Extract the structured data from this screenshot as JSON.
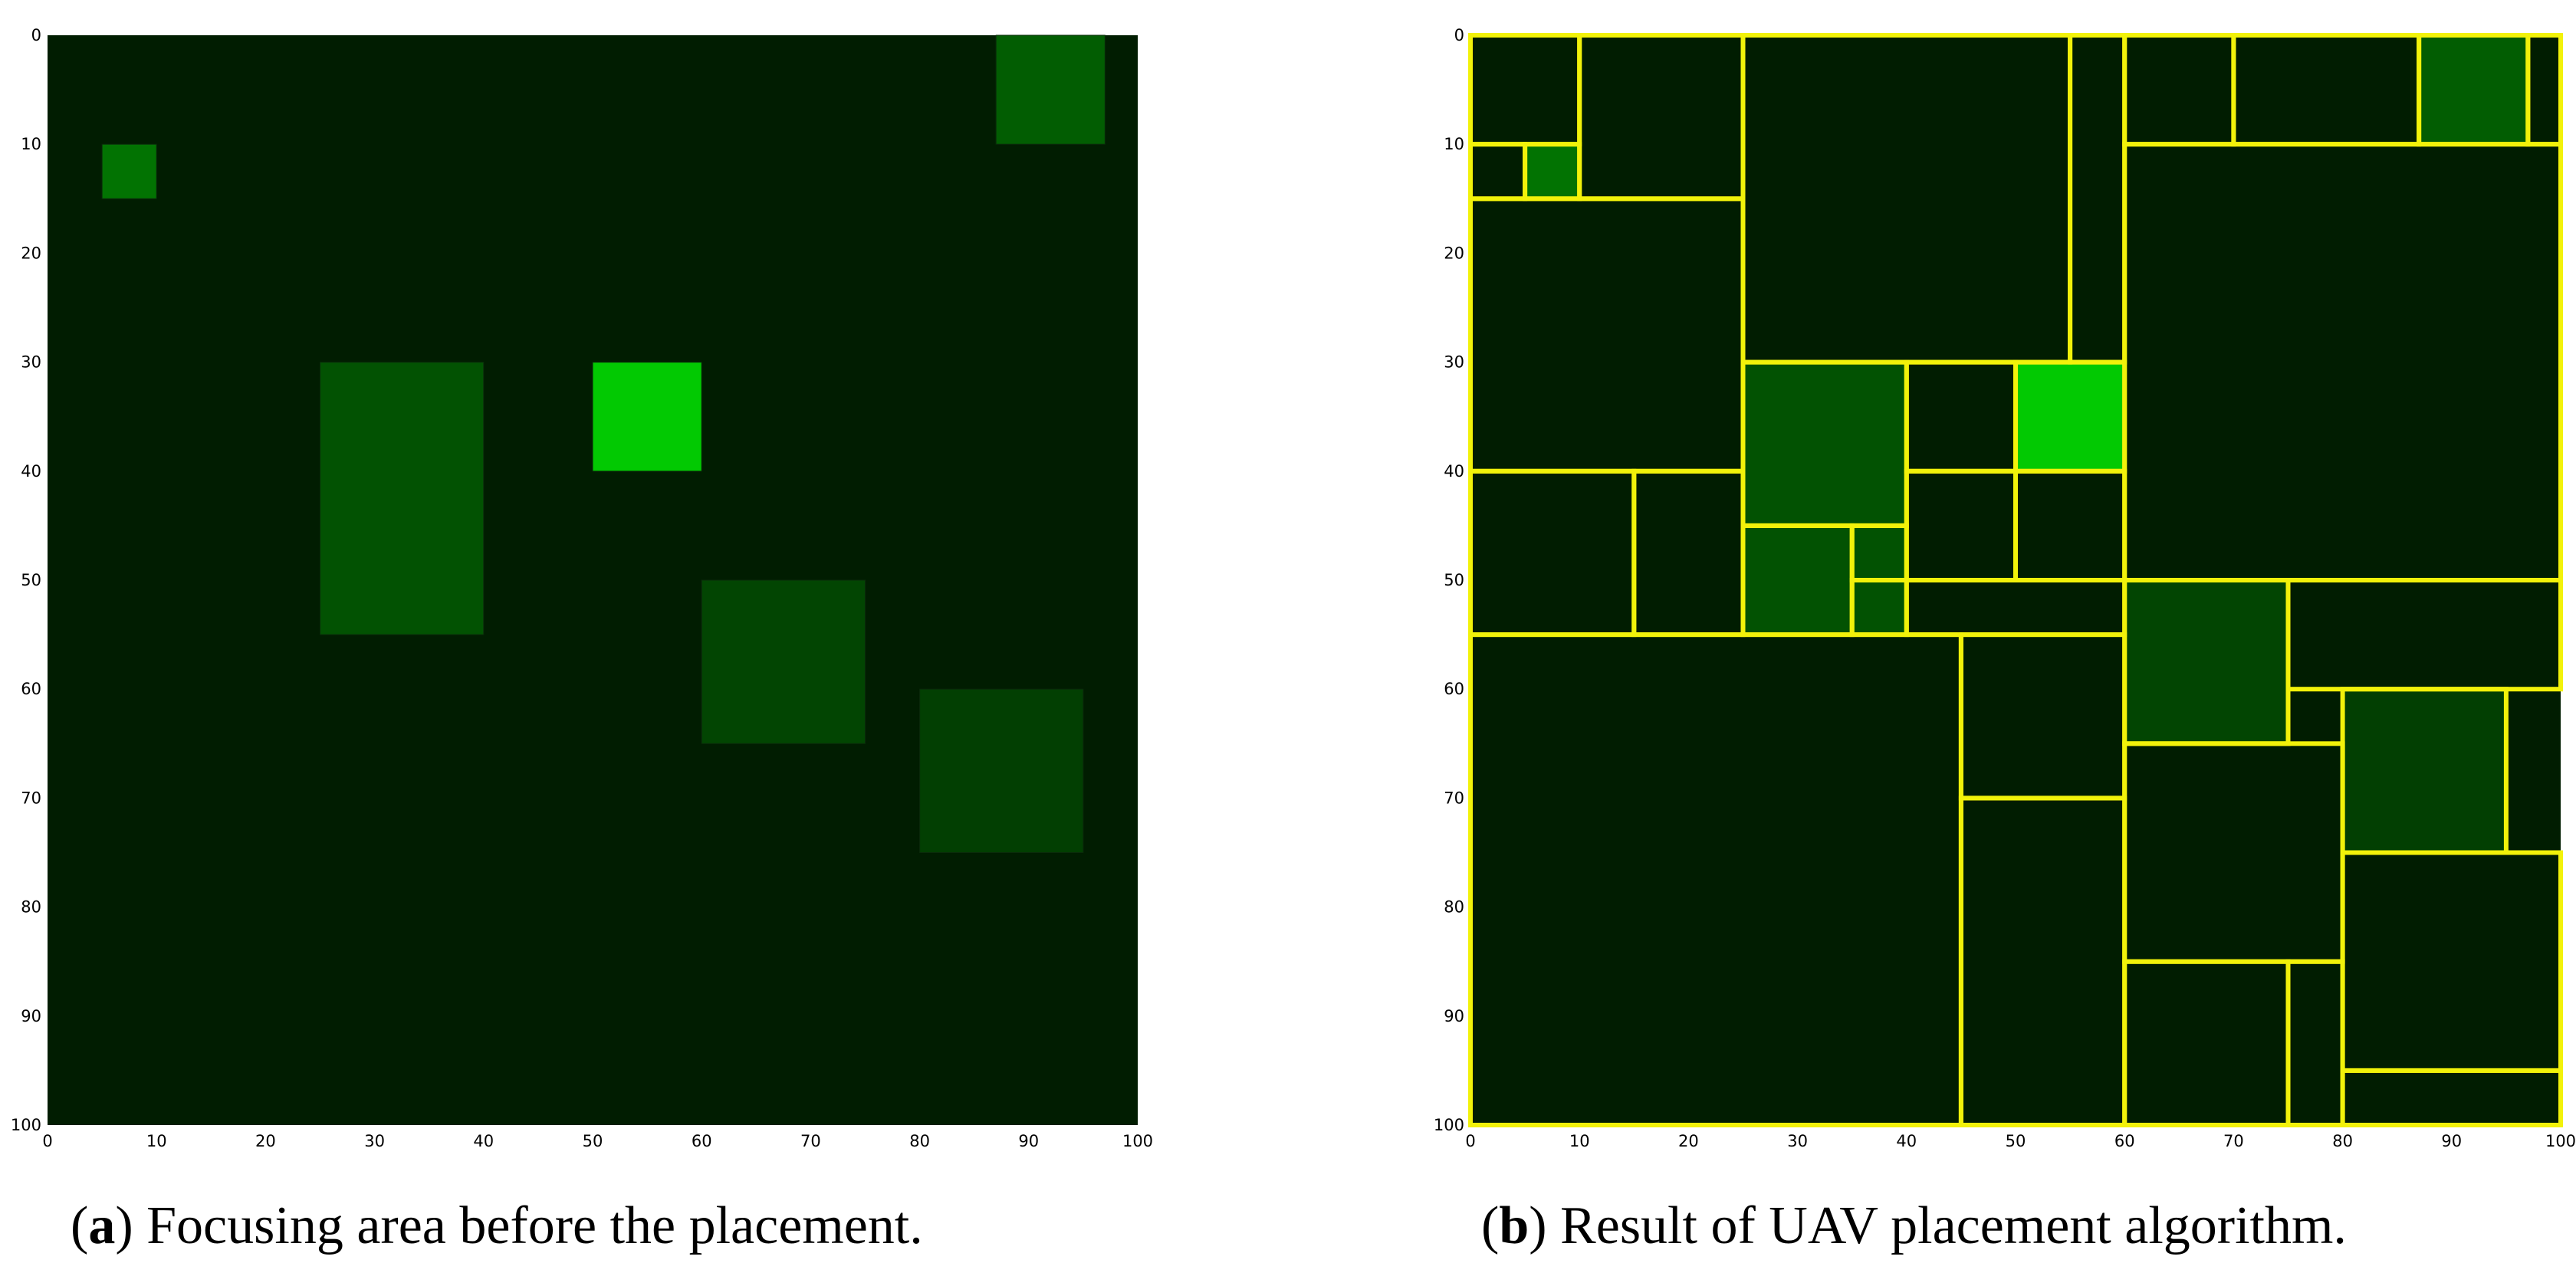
{
  "chart_data": [
    {
      "type": "heatmap",
      "panel": "a",
      "xlim": [
        0,
        100
      ],
      "ylim": [
        0,
        100
      ],
      "y_inverted": true,
      "xticks": [
        "0",
        "10",
        "20",
        "30",
        "40",
        "50",
        "60",
        "70",
        "80",
        "90",
        "100"
      ],
      "yticks": [
        "0",
        "10",
        "20",
        "30",
        "40",
        "50",
        "60",
        "70",
        "80",
        "90",
        "100"
      ],
      "background_color": "#011d01",
      "regions": [
        {
          "x0": 87,
          "y0": 0,
          "x1": 97,
          "y1": 10,
          "color": "#025d02"
        },
        {
          "x0": 5,
          "y0": 10,
          "x1": 10,
          "y1": 15,
          "color": "#027302"
        },
        {
          "x0": 25,
          "y0": 30,
          "x1": 40,
          "y1": 55,
          "color": "#025202"
        },
        {
          "x0": 50,
          "y0": 30,
          "x1": 60,
          "y1": 40,
          "color": "#02c902"
        },
        {
          "x0": 60,
          "y0": 50,
          "x1": 75,
          "y1": 65,
          "color": "#024502"
        },
        {
          "x0": 80,
          "y0": 60,
          "x1": 95,
          "y1": 75,
          "color": "#023f02"
        }
      ],
      "caption": {
        "label": "a",
        "text": ") Focusing area before the placement.",
        "open": "("
      }
    },
    {
      "type": "heatmap",
      "panel": "b",
      "xlim": [
        0,
        100
      ],
      "ylim": [
        0,
        100
      ],
      "y_inverted": true,
      "xticks": [
        "0",
        "10",
        "20",
        "30",
        "40",
        "50",
        "60",
        "70",
        "80",
        "90",
        "100"
      ],
      "yticks": [
        "0",
        "10",
        "20",
        "30",
        "40",
        "50",
        "60",
        "70",
        "80",
        "90",
        "100"
      ],
      "background_color": "#011d01",
      "regions": [
        {
          "x0": 87,
          "y0": 0,
          "x1": 97,
          "y1": 10,
          "color": "#025d02"
        },
        {
          "x0": 5,
          "y0": 10,
          "x1": 10,
          "y1": 15,
          "color": "#027302"
        },
        {
          "x0": 25,
          "y0": 30,
          "x1": 40,
          "y1": 45,
          "color": "#025202"
        },
        {
          "x0": 25,
          "y0": 45,
          "x1": 35,
          "y1": 55,
          "color": "#025202"
        },
        {
          "x0": 35,
          "y0": 45,
          "x1": 40,
          "y1": 55,
          "color": "#025202"
        },
        {
          "x0": 50,
          "y0": 30,
          "x1": 60,
          "y1": 40,
          "color": "#02c902"
        },
        {
          "x0": 60,
          "y0": 50,
          "x1": 75,
          "y1": 65,
          "color": "#024502"
        },
        {
          "x0": 80,
          "y0": 60,
          "x1": 95,
          "y1": 75,
          "color": "#023f02"
        }
      ],
      "placement_outline_color": "#f2f20a",
      "placement_cells": [
        [
          0,
          0,
          10,
          10
        ],
        [
          0,
          10,
          5,
          15
        ],
        [
          5,
          10,
          10,
          15
        ],
        [
          10,
          0,
          25,
          15
        ],
        [
          25,
          0,
          55,
          30
        ],
        [
          55,
          0,
          60,
          30
        ],
        [
          60,
          0,
          70,
          10
        ],
        [
          70,
          0,
          87,
          10
        ],
        [
          87,
          0,
          97,
          10
        ],
        [
          97,
          0,
          100,
          10
        ],
        [
          0,
          15,
          25,
          40
        ],
        [
          60,
          10,
          100,
          50
        ],
        [
          25,
          30,
          40,
          45
        ],
        [
          40,
          30,
          50,
          40
        ],
        [
          50,
          30,
          60,
          40
        ],
        [
          40,
          40,
          50,
          50
        ],
        [
          50,
          40,
          60,
          50
        ],
        [
          0,
          40,
          15,
          55
        ],
        [
          15,
          40,
          25,
          55
        ],
        [
          25,
          45,
          35,
          55
        ],
        [
          35,
          45,
          40,
          50
        ],
        [
          35,
          50,
          40,
          55
        ],
        [
          40,
          50,
          60,
          55
        ],
        [
          0,
          55,
          45,
          100
        ],
        [
          45,
          55,
          60,
          70
        ],
        [
          45,
          70,
          60,
          100
        ],
        [
          60,
          50,
          75,
          65
        ],
        [
          75,
          50,
          100,
          60
        ],
        [
          60,
          65,
          80,
          85
        ],
        [
          80,
          60,
          95,
          75
        ],
        [
          80,
          75,
          100,
          95
        ],
        [
          60,
          85,
          75,
          100
        ],
        [
          75,
          85,
          80,
          100
        ],
        [
          80,
          95,
          100,
          100
        ]
      ],
      "caption": {
        "label": "b",
        "text": ") Result of UAV placement algorithm.",
        "open": "("
      }
    }
  ]
}
